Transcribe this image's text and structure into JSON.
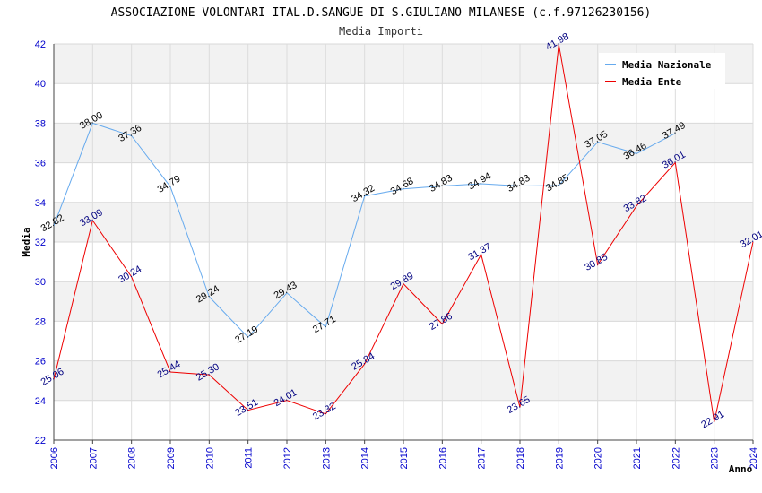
{
  "chart_data": {
    "type": "line",
    "title": "ASSOCIAZIONE VOLONTARI ITAL.D.SANGUE DI S.GIULIANO MILANESE (c.f.97126230156)",
    "subtitle": "Media Importi",
    "xlabel": "Anno",
    "ylabel": "Media",
    "ylim": [
      22,
      42
    ],
    "yticks": [
      22,
      24,
      26,
      28,
      30,
      32,
      34,
      36,
      38,
      40,
      42
    ],
    "x": [
      2006,
      2007,
      2008,
      2009,
      2010,
      2011,
      2012,
      2013,
      2014,
      2015,
      2016,
      2017,
      2018,
      2019,
      2020,
      2021,
      2022,
      2023,
      2024
    ],
    "grid": true,
    "legend_position": "top-right",
    "series": [
      {
        "name": "Media Nazionale",
        "color": "#66aaee",
        "label_color": "#000000",
        "values": [
          32.82,
          38.0,
          37.36,
          34.79,
          29.24,
          27.19,
          29.43,
          27.71,
          34.32,
          34.68,
          34.83,
          34.94,
          34.83,
          34.85,
          37.05,
          36.46,
          37.49,
          null,
          null
        ],
        "labels": [
          "32.82",
          "38.00",
          "37.36",
          "34.79",
          "29.24",
          "27.19",
          "29.43",
          "27.71",
          "34.32",
          "34.68",
          "34.83",
          "34.94",
          "34.83",
          "34.85",
          "37.05",
          "36.46",
          "37.49",
          "",
          ""
        ]
      },
      {
        "name": "Media Ente",
        "color": "#ee0000",
        "label_color": "#000080",
        "values": [
          25.06,
          33.09,
          30.24,
          25.44,
          25.3,
          23.51,
          24.01,
          23.32,
          25.84,
          29.89,
          27.86,
          31.37,
          23.65,
          41.98,
          30.85,
          33.82,
          36.01,
          22.91,
          32.01
        ],
        "labels": [
          "25.06",
          "33.09",
          "30.24",
          "25.44",
          "25.30",
          "23.51",
          "24.01",
          "23.32",
          "25.84",
          "29.89",
          "27.86",
          "31.37",
          "23.65",
          "41.98",
          "30.85",
          "33.82",
          "36.01",
          "22.91",
          "32.01"
        ]
      }
    ]
  }
}
